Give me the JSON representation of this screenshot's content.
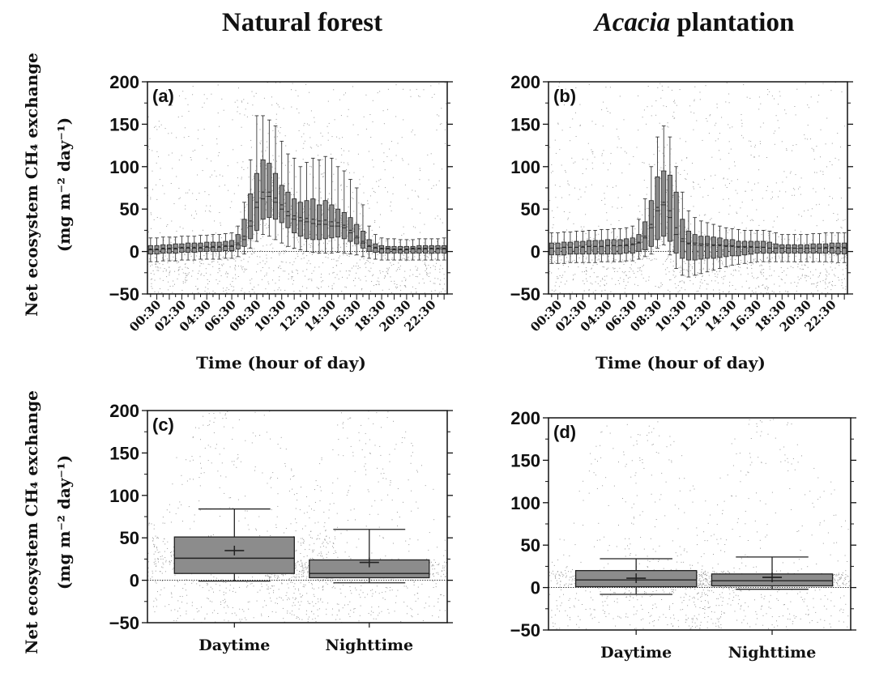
{
  "figure": {
    "col_title_left": "Natural forest",
    "col_title_right_italic": "Acacia",
    "col_title_right_rest": " plantation",
    "ylabel_top_row": "Net ecosystem CH₄ exchange",
    "ylabel_top_row_units": "(mg m⁻² day⁻¹)",
    "ylabel_bottom_row": "Net ecosystem CH₄ exchange",
    "ylabel_bottom_row_units": "(mg m⁻² day⁻¹)",
    "xlabel_time": "Time (hour of day)"
  },
  "colors": {
    "box_fill": "#8c8c8c",
    "box_stroke": "#222222",
    "scatter": "#9a9a9a",
    "axis": "#111111"
  },
  "chart_data": [
    {
      "panel": "(a)",
      "type": "box",
      "title": "Natural forest",
      "xlabel": "Time (hour of day)",
      "ylabel": "Net ecosystem CH4 exchange (mg m-2 day-1)",
      "ylim": [
        -50,
        200
      ],
      "yticks": [
        -50,
        0,
        50,
        100,
        150,
        200
      ],
      "tick_labels": [
        "00:30",
        "02:30",
        "04:30",
        "06:30",
        "08:30",
        "10:30",
        "12:30",
        "14:30",
        "16:30",
        "18:30",
        "20:30",
        "22:30"
      ],
      "categories": [
        "00:00",
        "00:30",
        "01:00",
        "01:30",
        "02:00",
        "02:30",
        "03:00",
        "03:30",
        "04:00",
        "04:30",
        "05:00",
        "05:30",
        "06:00",
        "06:30",
        "07:00",
        "07:30",
        "08:00",
        "08:30",
        "09:00",
        "09:30",
        "10:00",
        "10:30",
        "11:00",
        "11:30",
        "12:00",
        "12:30",
        "13:00",
        "13:30",
        "14:00",
        "14:30",
        "15:00",
        "15:30",
        "16:00",
        "16:30",
        "17:00",
        "17:30",
        "18:00",
        "18:30",
        "19:00",
        "19:30",
        "20:00",
        "20:30",
        "21:00",
        "21:30",
        "22:00",
        "22:30",
        "23:00",
        "23:30"
      ],
      "q1": [
        -3,
        -3,
        -2,
        -2,
        -2,
        -1,
        -1,
        -1,
        0,
        0,
        0,
        0,
        1,
        1,
        3,
        6,
        15,
        25,
        38,
        40,
        38,
        34,
        28,
        22,
        18,
        15,
        14,
        14,
        15,
        16,
        17,
        15,
        12,
        9,
        4,
        0,
        -1,
        -2,
        -2,
        -2,
        -2,
        -2,
        -2,
        -2,
        -2,
        -2,
        -2,
        -2
      ],
      "median": [
        2,
        2,
        3,
        3,
        3,
        4,
        4,
        4,
        4,
        5,
        5,
        5,
        6,
        6,
        8,
        14,
        30,
        52,
        62,
        65,
        58,
        50,
        42,
        38,
        36,
        35,
        33,
        32,
        32,
        30,
        30,
        28,
        22,
        16,
        10,
        6,
        4,
        3,
        3,
        2,
        2,
        2,
        3,
        3,
        3,
        3,
        3,
        3
      ],
      "q3": [
        7,
        7,
        8,
        8,
        9,
        9,
        10,
        10,
        10,
        11,
        11,
        11,
        12,
        13,
        20,
        38,
        68,
        92,
        108,
        104,
        92,
        78,
        70,
        62,
        58,
        60,
        62,
        55,
        60,
        55,
        50,
        46,
        40,
        32,
        24,
        14,
        9,
        7,
        6,
        6,
        6,
        6,
        6,
        7,
        7,
        7,
        7,
        7
      ],
      "wlo": [
        -12,
        -12,
        -11,
        -11,
        -11,
        -10,
        -10,
        -10,
        -9,
        -9,
        -9,
        -9,
        -8,
        -8,
        -6,
        -3,
        4,
        12,
        20,
        18,
        14,
        10,
        6,
        4,
        2,
        0,
        -1,
        -2,
        -2,
        -2,
        -1,
        -2,
        -3,
        -4,
        -6,
        -8,
        -9,
        -10,
        -10,
        -10,
        -10,
        -10,
        -10,
        -10,
        -10,
        -10,
        -10,
        -10
      ],
      "whi": [
        16,
        16,
        17,
        17,
        17,
        18,
        18,
        18,
        19,
        19,
        20,
        20,
        21,
        22,
        30,
        58,
        108,
        160,
        160,
        155,
        148,
        130,
        115,
        110,
        100,
        105,
        110,
        108,
        112,
        110,
        100,
        95,
        85,
        75,
        55,
        30,
        20,
        16,
        15,
        15,
        14,
        14,
        14,
        15,
        15,
        15,
        15,
        16
      ],
      "mean": [
        3,
        3,
        4,
        4,
        4,
        5,
        5,
        5,
        5,
        6,
        6,
        6,
        7,
        7,
        10,
        18,
        36,
        58,
        70,
        70,
        63,
        55,
        47,
        42,
        40,
        39,
        38,
        36,
        37,
        35,
        34,
        31,
        25,
        18,
        12,
        7,
        5,
        4,
        4,
        3,
        3,
        3,
        4,
        4,
        4,
        4,
        4,
        4
      ]
    },
    {
      "panel": "(b)",
      "type": "box",
      "title": "Acacia plantation",
      "xlabel": "Time (hour of day)",
      "ylabel": "Net ecosystem CH4 exchange (mg m-2 day-1)",
      "ylim": [
        -50,
        200
      ],
      "yticks": [
        -50,
        0,
        50,
        100,
        150,
        200
      ],
      "tick_labels": [
        "00:30",
        "02:30",
        "04:30",
        "06:30",
        "08:30",
        "10:30",
        "12:30",
        "14:30",
        "16:30",
        "18:30",
        "20:30",
        "22:30"
      ],
      "categories": [
        "00:00",
        "00:30",
        "01:00",
        "01:30",
        "02:00",
        "02:30",
        "03:00",
        "03:30",
        "04:00",
        "04:30",
        "05:00",
        "05:30",
        "06:00",
        "06:30",
        "07:00",
        "07:30",
        "08:00",
        "08:30",
        "09:00",
        "09:30",
        "10:00",
        "10:30",
        "11:00",
        "11:30",
        "12:00",
        "12:30",
        "13:00",
        "13:30",
        "14:00",
        "14:30",
        "15:00",
        "15:30",
        "16:00",
        "16:30",
        "17:00",
        "17:30",
        "18:00",
        "18:30",
        "19:00",
        "19:30",
        "20:00",
        "20:30",
        "21:00",
        "21:30",
        "22:00",
        "22:30",
        "23:00",
        "23:30"
      ],
      "q1": [
        -4,
        -4,
        -4,
        -3,
        -3,
        -3,
        -3,
        -3,
        -3,
        -3,
        -3,
        -3,
        -2,
        -2,
        0,
        2,
        6,
        14,
        18,
        12,
        -2,
        -8,
        -10,
        -10,
        -9,
        -8,
        -8,
        -7,
        -6,
        -5,
        -5,
        -4,
        -3,
        -2,
        -2,
        -2,
        -2,
        -2,
        -2,
        -2,
        -2,
        -2,
        -2,
        -2,
        -2,
        -2,
        -3,
        -3
      ],
      "median": [
        4,
        4,
        5,
        5,
        5,
        5,
        6,
        6,
        6,
        7,
        7,
        7,
        7,
        8,
        10,
        16,
        28,
        48,
        55,
        40,
        20,
        12,
        10,
        10,
        9,
        9,
        8,
        8,
        7,
        7,
        6,
        6,
        6,
        5,
        5,
        4,
        4,
        4,
        4,
        4,
        4,
        4,
        4,
        4,
        4,
        4,
        4,
        4
      ],
      "q3": [
        10,
        10,
        11,
        11,
        12,
        12,
        13,
        13,
        13,
        14,
        14,
        14,
        15,
        16,
        20,
        35,
        60,
        88,
        95,
        90,
        70,
        38,
        24,
        20,
        18,
        18,
        17,
        16,
        14,
        14,
        12,
        12,
        12,
        12,
        12,
        11,
        9,
        8,
        8,
        8,
        8,
        8,
        9,
        9,
        9,
        10,
        10,
        10
      ],
      "wlo": [
        -14,
        -14,
        -14,
        -13,
        -13,
        -13,
        -13,
        -13,
        -12,
        -12,
        -12,
        -12,
        -11,
        -11,
        -9,
        -6,
        -3,
        4,
        8,
        -4,
        -20,
        -28,
        -30,
        -28,
        -26,
        -24,
        -22,
        -20,
        -18,
        -16,
        -15,
        -14,
        -13,
        -12,
        -12,
        -12,
        -12,
        -12,
        -12,
        -12,
        -12,
        -12,
        -12,
        -12,
        -12,
        -12,
        -13,
        -13
      ],
      "whi": [
        22,
        22,
        23,
        23,
        24,
        24,
        25,
        25,
        26,
        26,
        27,
        27,
        28,
        30,
        38,
        62,
        100,
        135,
        148,
        135,
        100,
        70,
        48,
        40,
        36,
        34,
        32,
        30,
        28,
        27,
        26,
        25,
        25,
        25,
        25,
        24,
        22,
        20,
        20,
        20,
        20,
        20,
        21,
        21,
        22,
        22,
        22,
        22
      ],
      "mean": [
        4,
        4,
        5,
        5,
        5,
        6,
        6,
        6,
        6,
        7,
        7,
        7,
        8,
        9,
        11,
        18,
        32,
        52,
        58,
        48,
        28,
        15,
        9,
        8,
        7,
        7,
        7,
        7,
        6,
        6,
        5,
        5,
        5,
        5,
        5,
        4,
        4,
        4,
        4,
        4,
        4,
        4,
        4,
        4,
        5,
        5,
        5,
        5
      ]
    },
    {
      "panel": "(c)",
      "type": "box",
      "title": "Natural forest",
      "ylabel": "Net ecosystem CH4 exchange (mg m-2 day-1)",
      "ylim": [
        -50,
        200
      ],
      "yticks": [
        -50,
        0,
        50,
        100,
        150,
        200
      ],
      "categories": [
        "Daytime",
        "Nighttime"
      ],
      "q1": [
        8,
        3
      ],
      "median": [
        26,
        8
      ],
      "q3": [
        51,
        24
      ],
      "wlo": [
        -1,
        -3
      ],
      "whi": [
        84,
        60
      ],
      "mean": [
        35,
        21
      ]
    },
    {
      "panel": "(d)",
      "type": "box",
      "title": "Acacia plantation",
      "ylabel": "Net ecosystem CH4 exchange (mg m-2 day-1)",
      "ylim": [
        -50,
        200
      ],
      "yticks": [
        -50,
        0,
        50,
        100,
        150,
        200
      ],
      "categories": [
        "Daytime",
        "Nighttime"
      ],
      "q1": [
        1,
        2
      ],
      "median": [
        9,
        8
      ],
      "q3": [
        20,
        16
      ],
      "wlo": [
        -8,
        -2
      ],
      "whi": [
        34,
        36
      ],
      "mean": [
        11,
        12
      ]
    }
  ]
}
